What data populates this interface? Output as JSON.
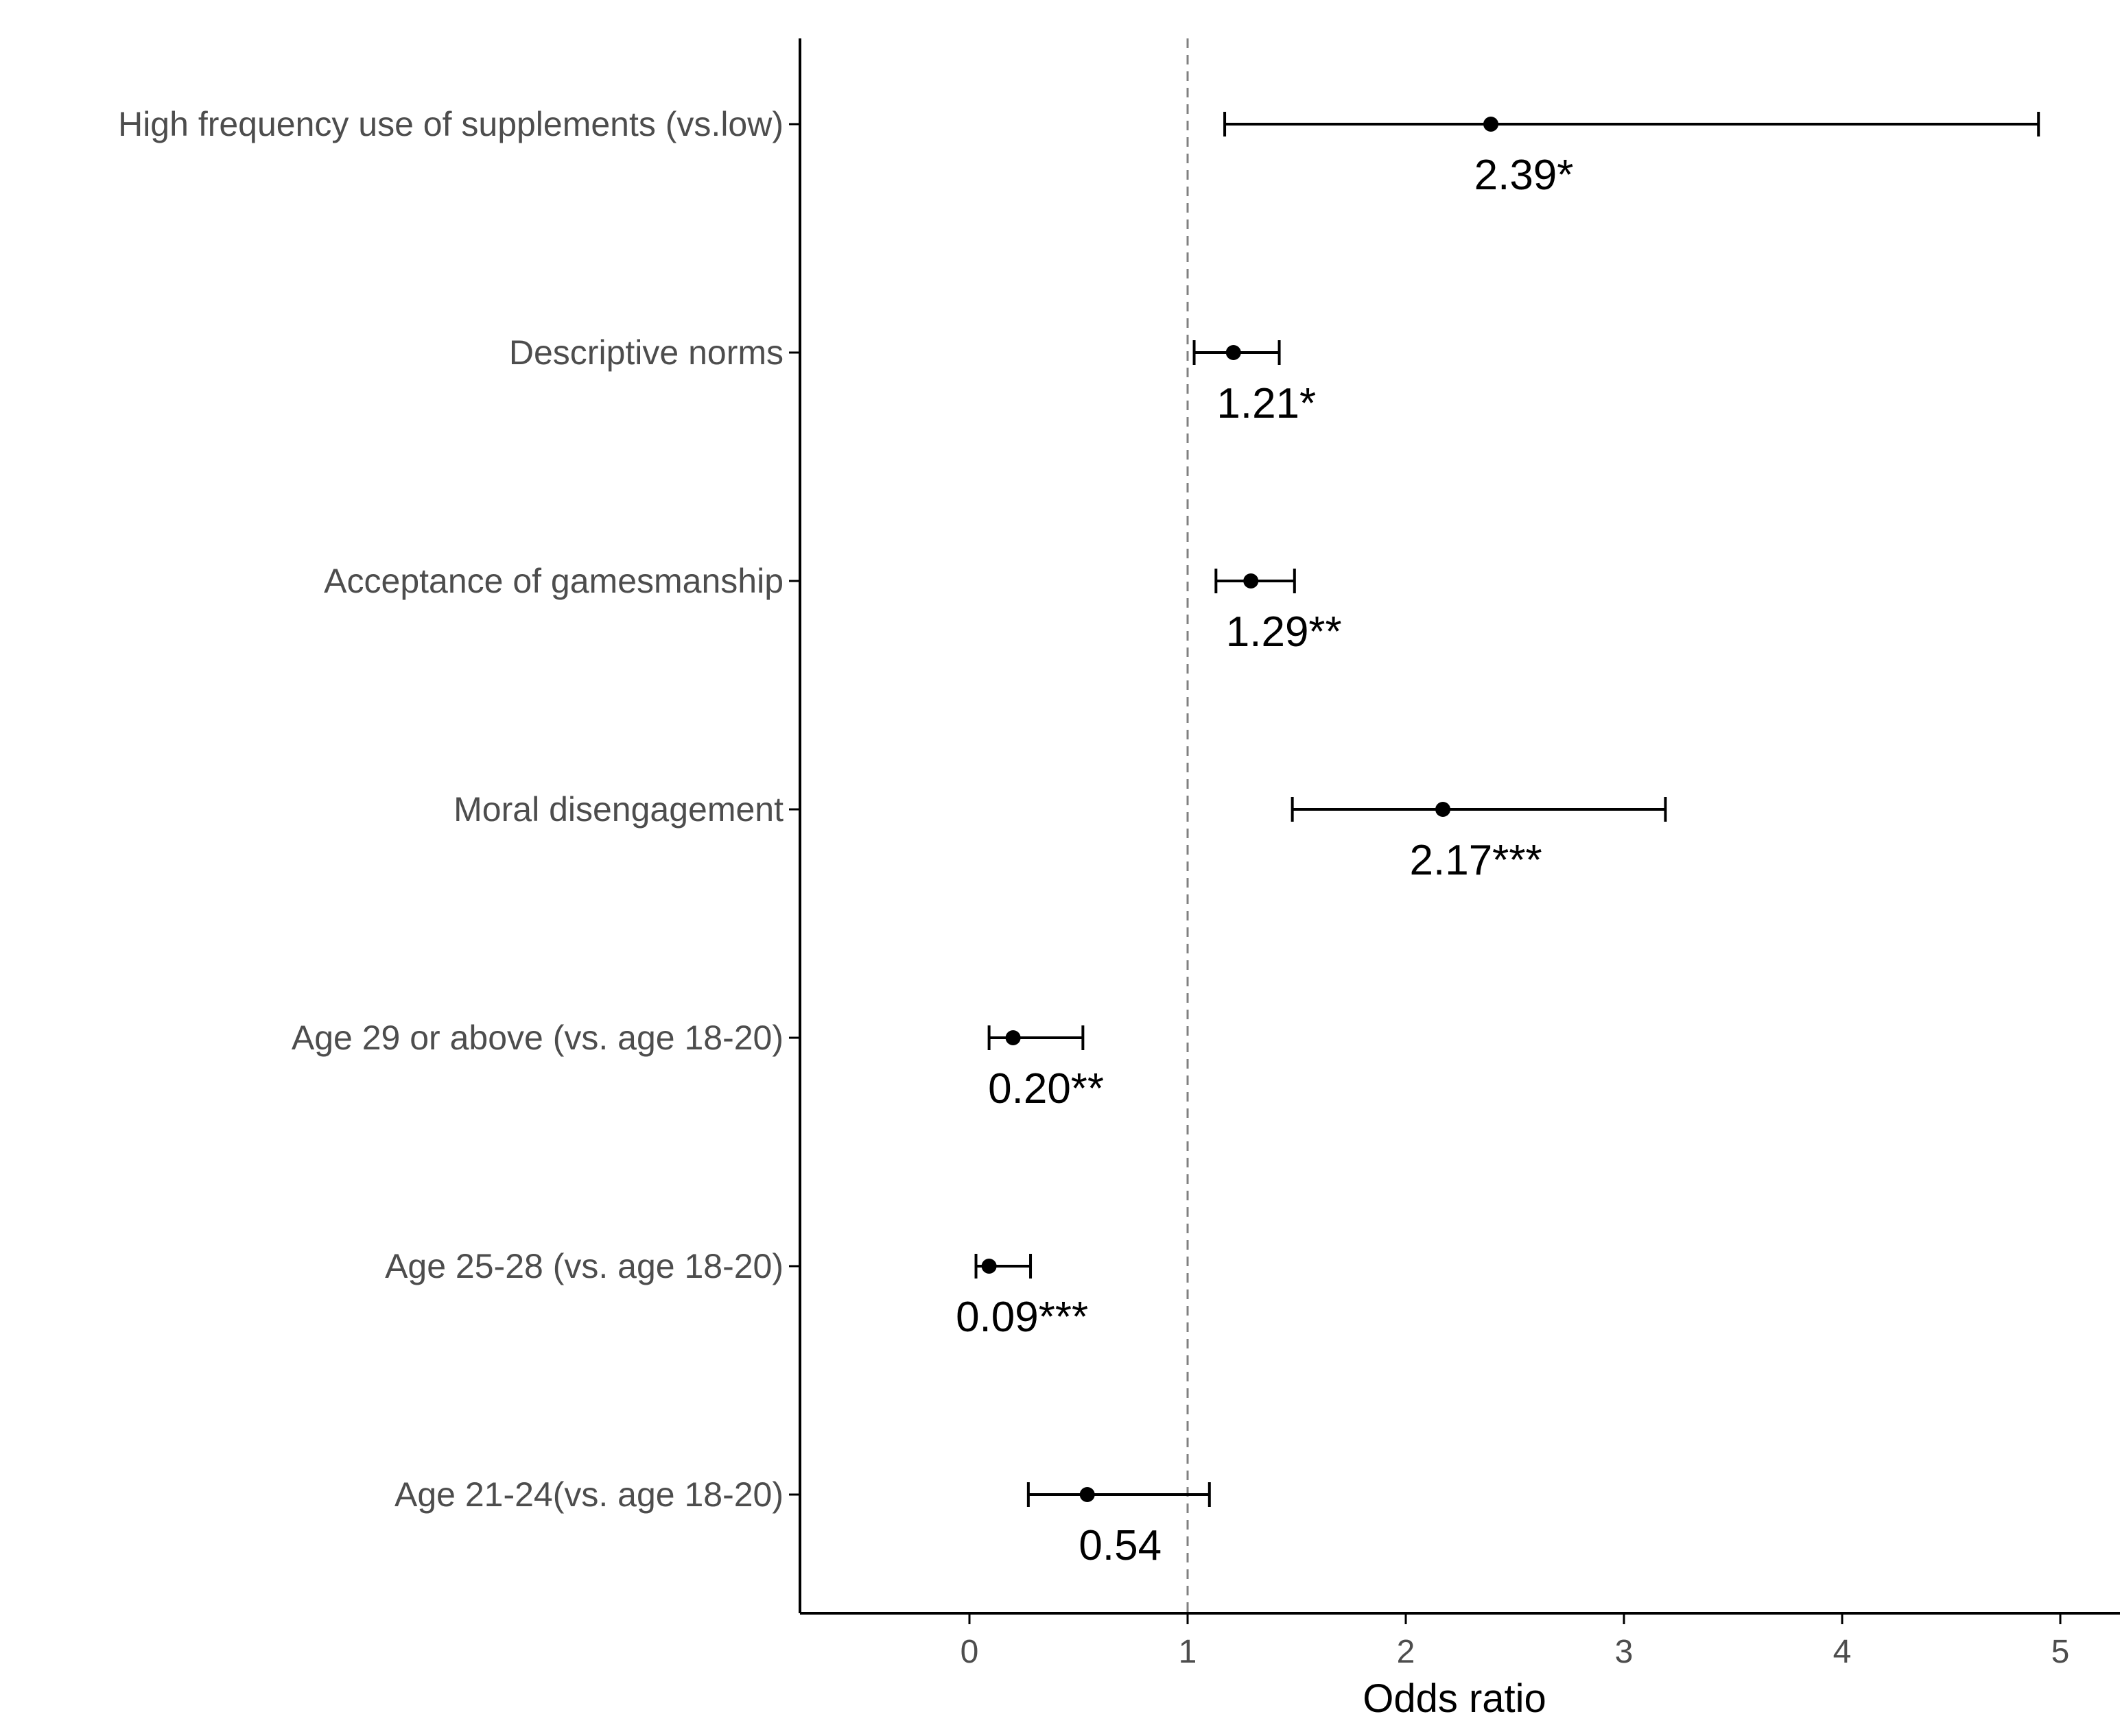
{
  "chart_data": {
    "type": "scatter",
    "subtype": "forest-plot",
    "title": "",
    "xlabel": "Odds ratio",
    "ylabel": "",
    "xlim": [
      -0.8,
      5.25
    ],
    "x_ticks": [
      "0",
      "1",
      "2",
      "3",
      "4",
      "5"
    ],
    "reference_line": {
      "x": 1,
      "style": "dashed",
      "color": "#808080"
    },
    "grid": false,
    "legend": "none",
    "colors": {
      "point": "#000000",
      "axis": "#000000",
      "tick_text": "#4d4d4d"
    },
    "rows": [
      {
        "category": "High frequency use of supplements (vs.low)",
        "or": 2.39,
        "ci_low": 1.17,
        "ci_high": 4.9,
        "label": "2.39*"
      },
      {
        "category": "Descriptive norms",
        "or": 1.21,
        "ci_low": 1.03,
        "ci_high": 1.42,
        "label": "1.21*"
      },
      {
        "category": "Acceptance of gamesmanship",
        "or": 1.29,
        "ci_low": 1.13,
        "ci_high": 1.49,
        "label": "1.29**"
      },
      {
        "category": "Moral disengagement",
        "or": 2.17,
        "ci_low": 1.48,
        "ci_high": 3.19,
        "label": "2.17***"
      },
      {
        "category": "Age 29 or above (vs. age 18-20)",
        "or": 0.2,
        "ci_low": 0.09,
        "ci_high": 0.52,
        "label": "0.20**"
      },
      {
        "category": "Age 25-28 (vs. age 18-20)",
        "or": 0.09,
        "ci_low": 0.03,
        "ci_high": 0.28,
        "label": "0.09***"
      },
      {
        "category": "Age 21-24(vs. age 18-20)",
        "or": 0.54,
        "ci_low": 0.27,
        "ci_high": 1.1,
        "label": "0.54"
      }
    ]
  }
}
